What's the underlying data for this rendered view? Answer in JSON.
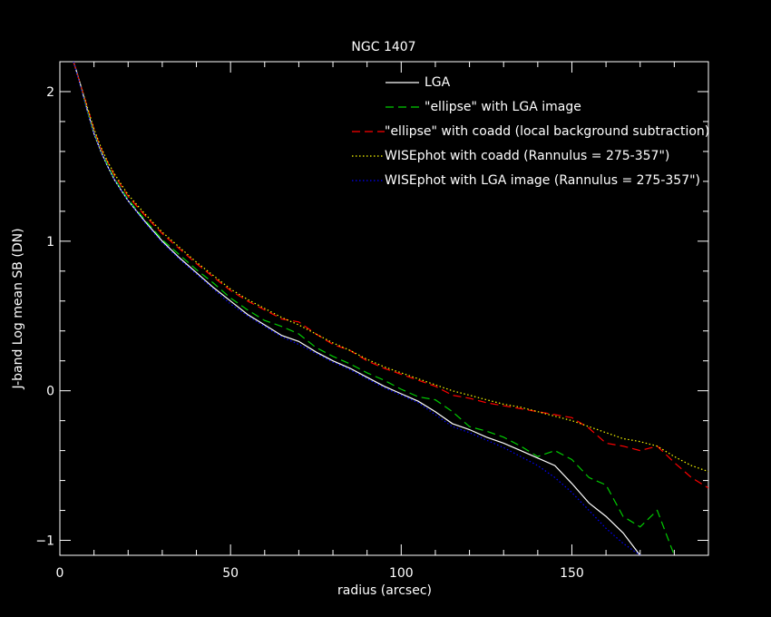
{
  "chart_data": {
    "type": "line",
    "title": "NGC 1407",
    "xlabel": "radius (arcsec)",
    "ylabel": "J-band Log mean SB (DN)",
    "xlim": [
      0,
      190
    ],
    "ylim": [
      -1.1,
      2.2
    ],
    "xticks": [
      0,
      50,
      100,
      150
    ],
    "yticks": [
      -1,
      0,
      1,
      2
    ],
    "grid": false,
    "legend_position": "top-right",
    "series": [
      {
        "name": "LGA",
        "color": "#ffffff",
        "dash": "solid",
        "x": [
          4,
          6,
          8,
          10,
          12,
          14,
          16,
          18,
          20,
          25,
          30,
          35,
          40,
          45,
          50,
          55,
          60,
          65,
          70,
          75,
          80,
          85,
          90,
          95,
          100,
          105,
          110,
          115,
          120,
          125,
          130,
          135,
          140,
          145,
          150,
          155,
          160,
          165,
          170
        ],
        "y": [
          2.2,
          2.05,
          1.88,
          1.72,
          1.6,
          1.5,
          1.41,
          1.34,
          1.27,
          1.13,
          1.0,
          0.89,
          0.79,
          0.69,
          0.6,
          0.51,
          0.44,
          0.37,
          0.33,
          0.26,
          0.2,
          0.15,
          0.09,
          0.03,
          -0.02,
          -0.07,
          -0.14,
          -0.22,
          -0.26,
          -0.31,
          -0.35,
          -0.4,
          -0.45,
          -0.5,
          -0.62,
          -0.75,
          -0.84,
          -0.95,
          -1.1
        ]
      },
      {
        "name": "\"ellipse\" with LGA image",
        "color": "#00cc00",
        "dash": "dashed",
        "x": [
          4,
          6,
          8,
          10,
          12,
          14,
          16,
          18,
          20,
          25,
          30,
          35,
          40,
          45,
          50,
          55,
          60,
          65,
          70,
          75,
          80,
          85,
          90,
          95,
          100,
          105,
          110,
          115,
          120,
          125,
          130,
          135,
          140,
          145,
          150,
          155,
          160,
          165,
          170,
          175,
          180
        ],
        "y": [
          2.2,
          2.05,
          1.88,
          1.73,
          1.61,
          1.51,
          1.42,
          1.35,
          1.28,
          1.14,
          1.01,
          0.91,
          0.81,
          0.72,
          0.62,
          0.54,
          0.47,
          0.43,
          0.38,
          0.29,
          0.23,
          0.18,
          0.12,
          0.07,
          0.01,
          -0.04,
          -0.06,
          -0.14,
          -0.24,
          -0.27,
          -0.31,
          -0.37,
          -0.44,
          -0.4,
          -0.46,
          -0.58,
          -0.63,
          -0.84,
          -0.91,
          -0.8,
          -1.1
        ]
      },
      {
        "name": "\"ellipse\" with coadd (local background subtraction)",
        "color": "#ff0000",
        "dash": "dashed",
        "x": [
          4,
          6,
          8,
          10,
          12,
          14,
          16,
          18,
          20,
          25,
          30,
          35,
          40,
          45,
          50,
          55,
          60,
          65,
          70,
          75,
          80,
          85,
          90,
          95,
          100,
          105,
          110,
          115,
          120,
          125,
          130,
          135,
          140,
          145,
          150,
          155,
          160,
          165,
          170,
          175,
          180,
          185,
          190
        ],
        "y": [
          2.2,
          2.05,
          1.9,
          1.75,
          1.62,
          1.53,
          1.44,
          1.37,
          1.3,
          1.17,
          1.05,
          0.95,
          0.85,
          0.76,
          0.67,
          0.6,
          0.54,
          0.48,
          0.46,
          0.38,
          0.31,
          0.27,
          0.2,
          0.15,
          0.11,
          0.07,
          0.03,
          -0.03,
          -0.05,
          -0.08,
          -0.1,
          -0.12,
          -0.14,
          -0.16,
          -0.18,
          -0.25,
          -0.35,
          -0.37,
          -0.4,
          -0.37,
          -0.48,
          -0.58,
          -0.65
        ]
      },
      {
        "name": "WISEphot with coadd (Rannulus = 275-357\")",
        "color": "#ffff00",
        "dash": "dotted",
        "x": [
          4,
          6,
          8,
          10,
          12,
          14,
          16,
          18,
          20,
          25,
          30,
          35,
          40,
          45,
          50,
          55,
          60,
          65,
          70,
          75,
          80,
          85,
          90,
          95,
          100,
          105,
          110,
          115,
          120,
          125,
          130,
          135,
          140,
          145,
          150,
          155,
          160,
          165,
          170,
          175,
          180,
          185,
          190
        ],
        "y": [
          2.2,
          2.05,
          1.9,
          1.75,
          1.63,
          1.53,
          1.45,
          1.38,
          1.31,
          1.18,
          1.06,
          0.96,
          0.86,
          0.77,
          0.68,
          0.61,
          0.55,
          0.49,
          0.44,
          0.38,
          0.32,
          0.27,
          0.21,
          0.16,
          0.12,
          0.08,
          0.04,
          0.0,
          -0.03,
          -0.06,
          -0.09,
          -0.11,
          -0.14,
          -0.17,
          -0.2,
          -0.24,
          -0.28,
          -0.32,
          -0.34,
          -0.37,
          -0.44,
          -0.5,
          -0.54
        ]
      },
      {
        "name": "WISEphot with LGA image (Rannulus = 275-357\")",
        "color": "#0000ff",
        "dash": "dotted",
        "x": [
          4,
          6,
          8,
          10,
          12,
          14,
          16,
          18,
          20,
          25,
          30,
          35,
          40,
          45,
          50,
          55,
          60,
          65,
          70,
          75,
          80,
          85,
          90,
          95,
          100,
          105,
          110,
          115,
          120,
          125,
          130,
          135,
          140,
          145,
          150,
          155,
          160,
          165,
          170
        ],
        "y": [
          2.2,
          2.04,
          1.87,
          1.72,
          1.6,
          1.5,
          1.41,
          1.34,
          1.27,
          1.12,
          0.99,
          0.88,
          0.78,
          0.68,
          0.58,
          0.5,
          0.43,
          0.36,
          0.31,
          0.25,
          0.19,
          0.14,
          0.08,
          0.02,
          -0.03,
          -0.08,
          -0.16,
          -0.24,
          -0.28,
          -0.33,
          -0.38,
          -0.44,
          -0.5,
          -0.58,
          -0.68,
          -0.8,
          -0.92,
          -1.02,
          -1.1
        ]
      }
    ]
  }
}
